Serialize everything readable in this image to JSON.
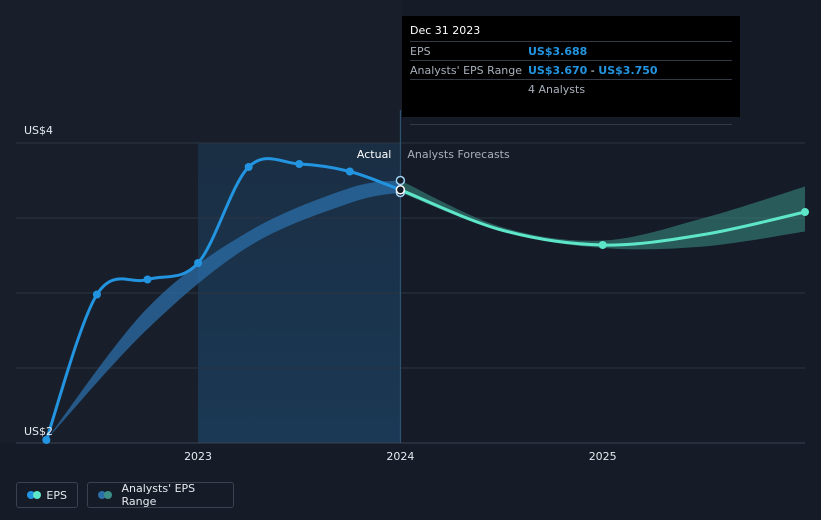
{
  "chart_data": {
    "type": "line",
    "y_axis": {
      "ticks": [
        {
          "value": 4,
          "label": "US$4"
        },
        {
          "value": 2,
          "label": "US$2"
        }
      ],
      "ylim": [
        2,
        4
      ]
    },
    "x_axis": {
      "ticks": [
        {
          "value": 2023,
          "label": "2023"
        },
        {
          "value": 2024,
          "label": "2024"
        },
        {
          "value": 2025,
          "label": "2025"
        }
      ],
      "xlim": [
        2022.1,
        2026.0
      ]
    },
    "region_labels": {
      "actual": "Actual",
      "forecast": "Analysts Forecasts"
    },
    "series": [
      {
        "name": "EPS",
        "kind": "actual",
        "color": "#2394df",
        "points": [
          {
            "x": 2022.25,
            "y": 2.02
          },
          {
            "x": 2022.5,
            "y": 2.99
          },
          {
            "x": 2022.75,
            "y": 3.09
          },
          {
            "x": 2023.0,
            "y": 3.2
          },
          {
            "x": 2023.25,
            "y": 3.84
          },
          {
            "x": 2023.5,
            "y": 3.86
          },
          {
            "x": 2023.75,
            "y": 3.81
          },
          {
            "x": 2024.0,
            "y": 3.688
          }
        ]
      },
      {
        "name": "EPS",
        "kind": "forecast",
        "color": "#5ee6c9",
        "points": [
          {
            "x": 2024.0,
            "y": 3.688
          },
          {
            "x": 2024.5,
            "y": 3.42
          },
          {
            "x": 2025.0,
            "y": 3.32
          },
          {
            "x": 2025.5,
            "y": 3.39
          },
          {
            "x": 2026.0,
            "y": 3.54
          }
        ]
      }
    ],
    "ranges": [
      {
        "name": "Analysts' EPS Range",
        "kind": "actual",
        "color": "#2b6ea8",
        "points": [
          {
            "x": 2022.25,
            "low": 2.02,
            "high": 2.02
          },
          {
            "x": 2022.75,
            "low": 2.76,
            "high": 2.9
          },
          {
            "x": 2023.25,
            "low": 3.31,
            "high": 3.41
          },
          {
            "x": 2023.75,
            "low": 3.6,
            "high": 3.7
          },
          {
            "x": 2024.0,
            "low": 3.67,
            "high": 3.75
          }
        ]
      },
      {
        "name": "Analysts' EPS Range",
        "kind": "forecast",
        "color": "#3c8f87",
        "points": [
          {
            "x": 2024.0,
            "low": 3.67,
            "high": 3.75
          },
          {
            "x": 2024.5,
            "low": 3.41,
            "high": 3.44
          },
          {
            "x": 2025.0,
            "low": 3.3,
            "high": 3.35
          },
          {
            "x": 2025.5,
            "low": 3.31,
            "high": 3.5
          },
          {
            "x": 2026.0,
            "low": 3.41,
            "high": 3.71
          }
        ]
      }
    ],
    "highlight": {
      "from": 2023.0,
      "to": 2024.0
    },
    "grid": true
  },
  "tooltip": {
    "date": "Dec 31 2023",
    "eps_label": "EPS",
    "eps_value": "US$3.688",
    "range_label": "Analysts' EPS Range",
    "range_low": "US$3.670",
    "range_sep": " - ",
    "range_high": "US$3.750",
    "analysts": "4 Analysts"
  },
  "legend": {
    "eps_label": "EPS",
    "range_label": "Analysts' EPS Range",
    "eps_colors": [
      "#2394df",
      "#5ee6c9"
    ],
    "range_colors": [
      "#2b6ea8",
      "#3c8f87"
    ]
  }
}
